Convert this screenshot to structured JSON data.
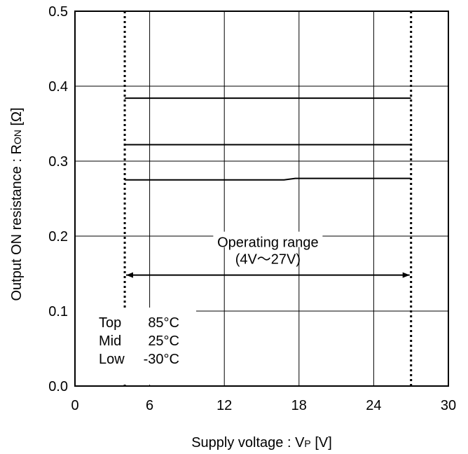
{
  "chart_data": {
    "type": "line",
    "title": "",
    "xlabel": {
      "main": "Supply voltage : V",
      "sub": "P",
      "unit": " [V]"
    },
    "ylabel": {
      "main": "Output ON resistance : R",
      "sub": "ON",
      "unit": " [Ω]"
    },
    "xlim": [
      0,
      30
    ],
    "ylim": [
      0,
      0.5
    ],
    "x_ticks": [
      "0",
      "6",
      "12",
      "18",
      "24",
      "30"
    ],
    "y_ticks": [
      "0.0",
      "0.1",
      "0.2",
      "0.3",
      "0.4",
      "0.5"
    ],
    "grid": true,
    "series": [
      {
        "name": "Top 85°C",
        "x": [
          4,
          27
        ],
        "y": [
          0.384,
          0.384
        ]
      },
      {
        "name": "Mid 25°C",
        "x": [
          4,
          27
        ],
        "y": [
          0.322,
          0.322
        ]
      },
      {
        "name": "Low -30°C",
        "x": [
          4,
          16.8,
          17.7,
          27
        ],
        "y": [
          0.275,
          0.275,
          0.277,
          0.277
        ]
      }
    ],
    "boundaries": [
      4,
      27
    ],
    "operating_range": {
      "label_line1": "Operating range",
      "label_line2": "(4V〜27V)",
      "y": 0.148,
      "from": 4,
      "to": 27
    },
    "legend": {
      "placement": "bottom-left",
      "rows": [
        {
          "label": "Top",
          "value": "85°C"
        },
        {
          "label": "Mid",
          "value": "25°C"
        },
        {
          "label": "Low",
          "value": "-30°C"
        }
      ]
    }
  }
}
